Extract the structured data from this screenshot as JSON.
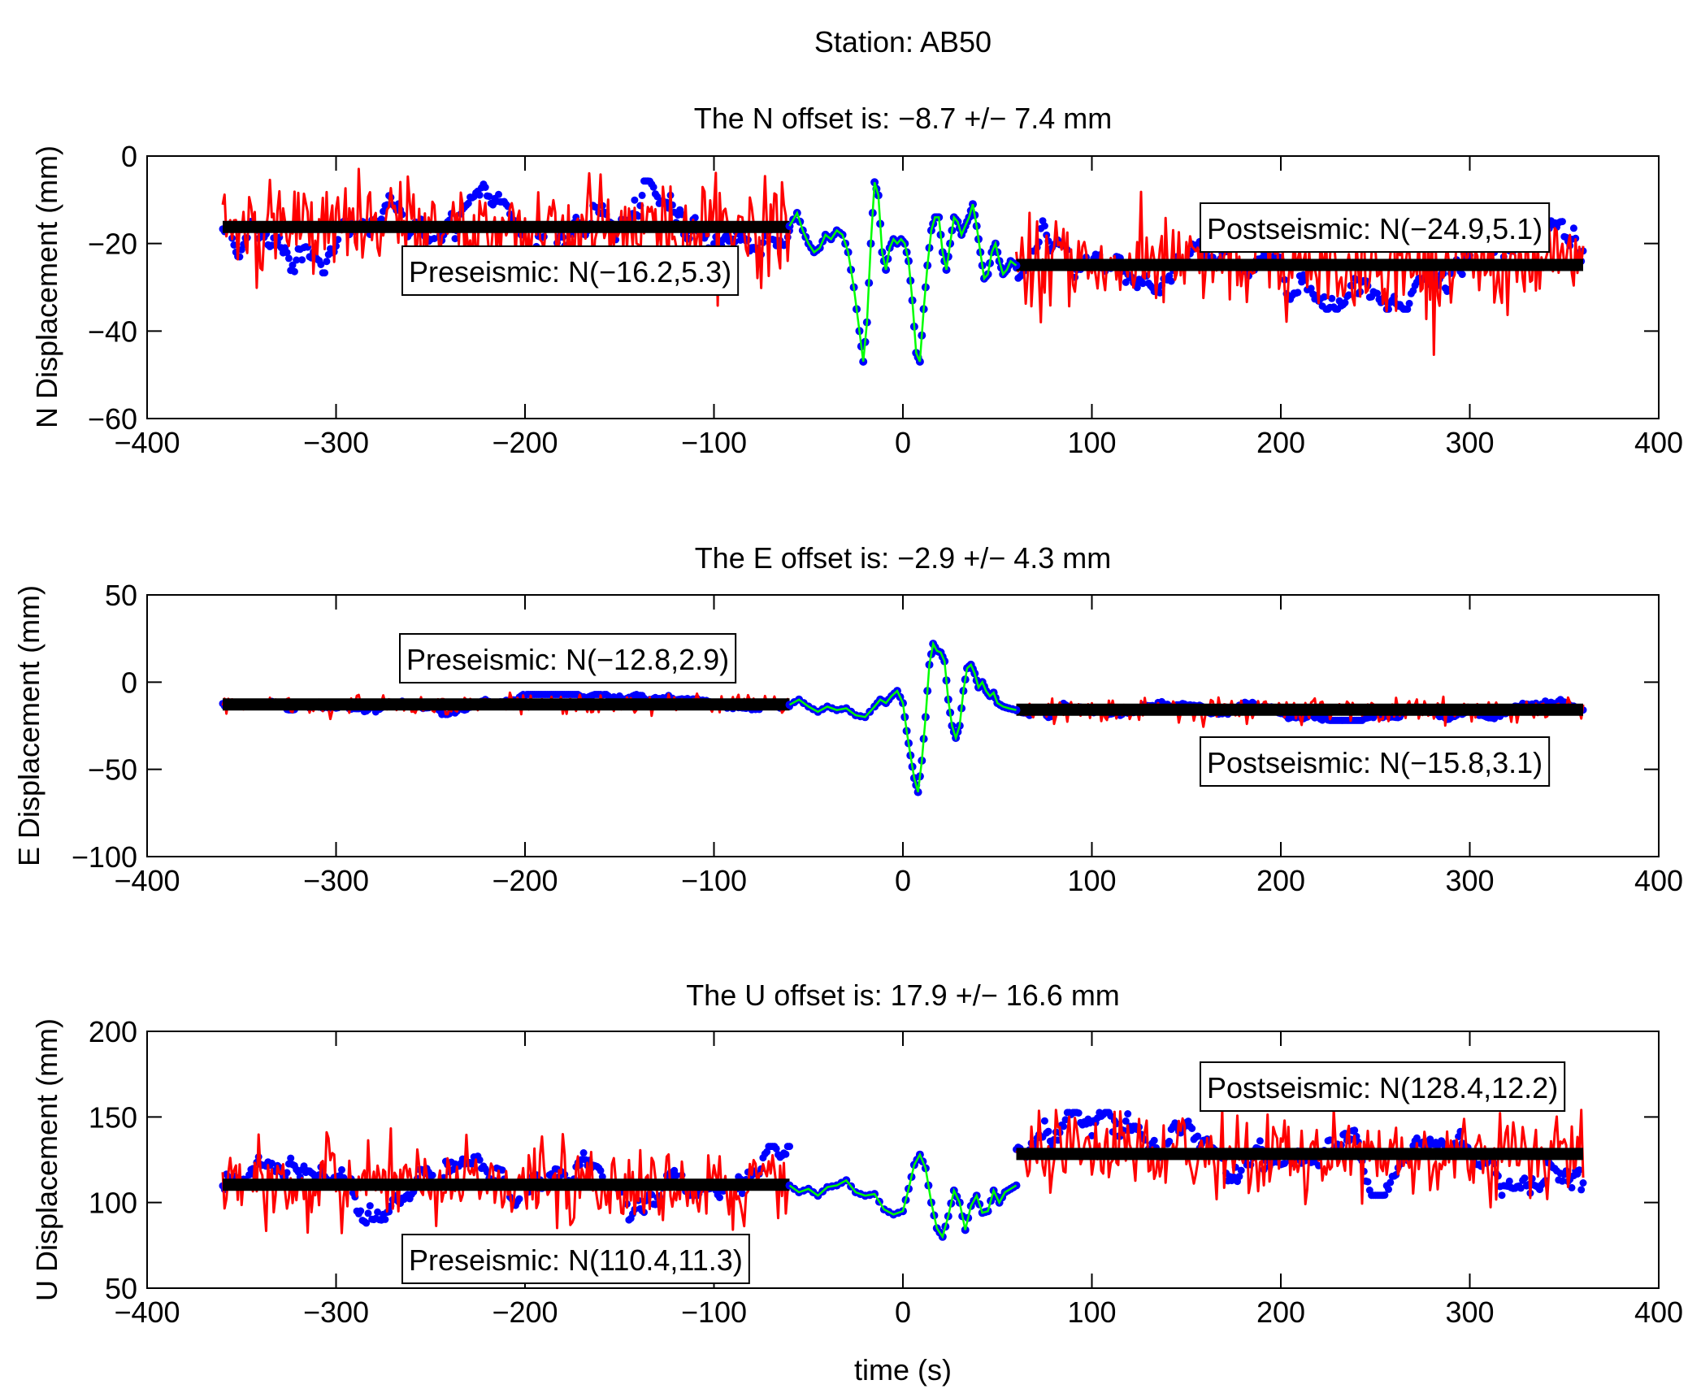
{
  "figure": {
    "suptitle": "Station: AB50",
    "xlabel": "time (s)"
  },
  "colors": {
    "raw_noise": "#ff0000",
    "smoothed_points": "#0000ff",
    "coseismic_line": "#00ff00",
    "mean_bar": "#000000"
  },
  "chart_data": [
    {
      "type": "line",
      "component": "N",
      "title": "The N offset is: −8.7 +/− 7.4 mm",
      "xlabel": "",
      "ylabel": "N Displacement (mm)",
      "xlim": [
        -400,
        400
      ],
      "ylim": [
        -60,
        0
      ],
      "xticks": [
        -400,
        -300,
        -200,
        -100,
        0,
        100,
        200,
        300,
        400
      ],
      "xtick_labels": [
        "−400",
        "−300",
        "−200",
        "−100",
        "0",
        "100",
        "200",
        "300",
        "400"
      ],
      "yticks": [
        -60,
        -40,
        -20,
        0
      ],
      "ytick_labels": [
        "−60",
        "−40",
        "−20",
        "0"
      ],
      "pre": {
        "label": "Preseismic: N(−16.2,5.3)",
        "mean": -16.2,
        "std": 5.3,
        "x_range": [
          -360,
          -60
        ]
      },
      "post": {
        "label": "Postseismic: N(−24.9,5.1)",
        "mean": -24.9,
        "std": 5.1,
        "x_range": [
          60,
          360
        ]
      },
      "coseismic": {
        "x": [
          -60,
          -56,
          -53,
          -50,
          -47,
          -44,
          -41,
          -38,
          -35,
          -32,
          -29,
          -26,
          -23,
          -21,
          -19,
          -17,
          -15,
          -13,
          -11,
          -9,
          -7,
          -5,
          -3,
          -1,
          1,
          3,
          5,
          7,
          9,
          11,
          13,
          15,
          17,
          19,
          21,
          23,
          25,
          27,
          29,
          31,
          33,
          35,
          37,
          39,
          41,
          43,
          45,
          47,
          49,
          51,
          53,
          55,
          57,
          60
        ],
        "y": [
          -16,
          -13,
          -17,
          -20,
          -22,
          -21,
          -18,
          -19,
          -17,
          -18,
          -22,
          -30,
          -40,
          -47,
          -38,
          -20,
          -6,
          -9,
          -22,
          -26,
          -21,
          -19,
          -20,
          -19,
          -20,
          -24,
          -33,
          -45,
          -47,
          -35,
          -25,
          -17,
          -14,
          -14,
          -22,
          -26,
          -20,
          -14,
          -15,
          -18,
          -16,
          -14,
          -11,
          -16,
          -22,
          -28,
          -27,
          -22,
          -20,
          -24,
          -27,
          -26,
          -24,
          -25
        ],
        "legend_order_note": "green line with blue markers"
      },
      "pre_smoothed_range": [
        -26,
        -5
      ],
      "post_smoothed_range": [
        -40,
        -7
      ]
    },
    {
      "type": "line",
      "component": "E",
      "title": "The E offset is: −2.9 +/− 4.3 mm",
      "xlabel": "",
      "ylabel": "E Displacement (mm)",
      "xlim": [
        -400,
        400
      ],
      "ylim": [
        -100,
        50
      ],
      "xticks": [
        -400,
        -300,
        -200,
        -100,
        0,
        100,
        200,
        300,
        400
      ],
      "xtick_labels": [
        "−400",
        "−300",
        "−200",
        "−100",
        "0",
        "100",
        "200",
        "300",
        "400"
      ],
      "yticks": [
        -100,
        -50,
        0,
        50
      ],
      "ytick_labels": [
        "−100",
        "−50",
        "0",
        "50"
      ],
      "pre": {
        "label": "Preseismic: N(−12.8,2.9)",
        "mean": -12.8,
        "std": 2.9,
        "x_range": [
          -360,
          -60
        ]
      },
      "post": {
        "label": "Postseismic: N(−15.8,3.1)",
        "mean": -15.8,
        "std": 3.1,
        "x_range": [
          60,
          360
        ]
      },
      "coseismic": {
        "x": [
          -60,
          -55,
          -50,
          -45,
          -40,
          -35,
          -30,
          -25,
          -20,
          -15,
          -12,
          -9,
          -6,
          -3,
          0,
          2,
          4,
          6,
          8,
          10,
          12,
          14,
          16,
          18,
          20,
          22,
          24,
          26,
          28,
          30,
          32,
          34,
          36,
          38,
          40,
          42,
          44,
          46,
          48,
          50,
          53,
          56,
          60
        ],
        "y": [
          -13,
          -10,
          -14,
          -17,
          -14,
          -16,
          -15,
          -19,
          -20,
          -14,
          -10,
          -12,
          -8,
          -5,
          -12,
          -28,
          -42,
          -55,
          -63,
          -45,
          -20,
          10,
          22,
          18,
          17,
          12,
          -10,
          -25,
          -32,
          -25,
          -5,
          8,
          10,
          5,
          -3,
          0,
          -5,
          -8,
          -6,
          -12,
          -14,
          -15,
          -16
        ]
      }
    },
    {
      "type": "line",
      "component": "U",
      "title": "The U offset is: 17.9 +/− 16.6 mm",
      "xlabel": "time (s)",
      "ylabel": "U Displacement (mm)",
      "xlim": [
        -400,
        400
      ],
      "ylim": [
        50,
        200
      ],
      "xticks": [
        -400,
        -300,
        -200,
        -100,
        0,
        100,
        200,
        300,
        400
      ],
      "xtick_labels": [
        "−400",
        "−300",
        "−200",
        "−100",
        "0",
        "100",
        "200",
        "300",
        "400"
      ],
      "yticks": [
        50,
        100,
        150,
        200
      ],
      "ytick_labels": [
        "50",
        "100",
        "150",
        "200"
      ],
      "pre": {
        "label": "Preseismic: N(110.4,11.3)",
        "mean": 110.4,
        "std": 11.3,
        "x_range": [
          -360,
          -60
        ]
      },
      "post": {
        "label": "Postseismic: N(128.4,12.2)",
        "mean": 128.4,
        "std": 12.2,
        "x_range": [
          60,
          360
        ]
      },
      "coseismic": {
        "x": [
          -60,
          -55,
          -50,
          -45,
          -40,
          -35,
          -30,
          -25,
          -20,
          -15,
          -10,
          -5,
          0,
          3,
          6,
          9,
          12,
          15,
          18,
          21,
          24,
          27,
          30,
          33,
          36,
          39,
          42,
          45,
          48,
          51,
          54,
          57,
          60
        ],
        "y": [
          110,
          106,
          108,
          104,
          109,
          110,
          113,
          106,
          104,
          105,
          96,
          93,
          95,
          108,
          122,
          128,
          120,
          100,
          85,
          80,
          92,
          107,
          100,
          84,
          98,
          104,
          94,
          95,
          107,
          100,
          106,
          108,
          110
        ]
      }
    }
  ]
}
